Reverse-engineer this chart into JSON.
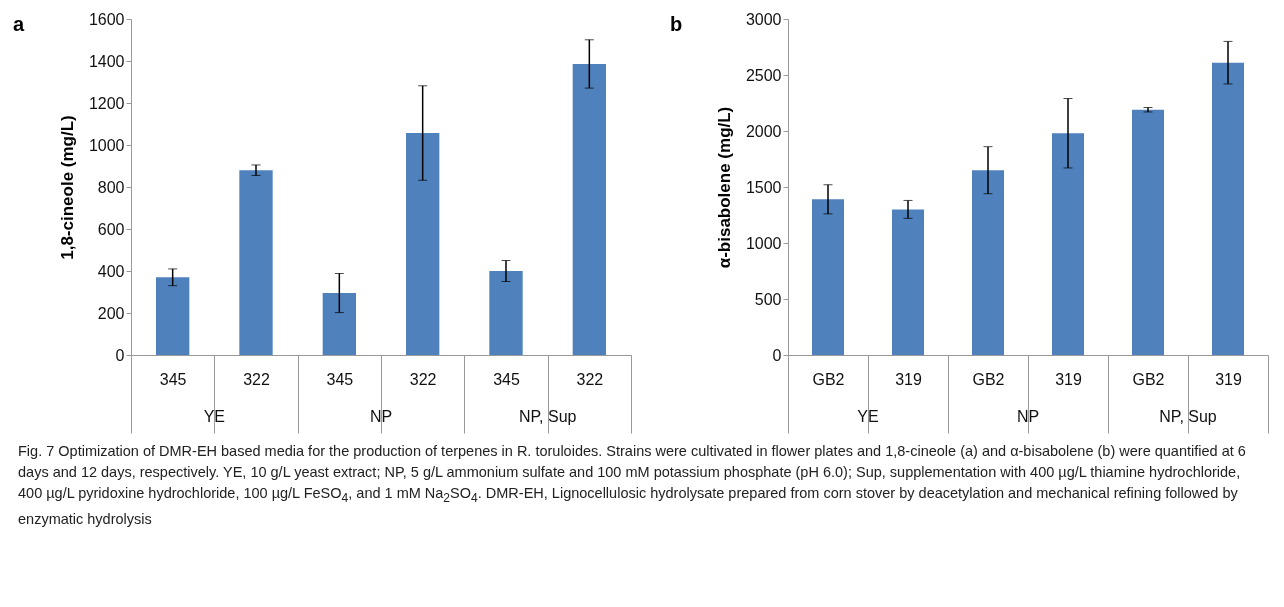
{
  "chart_data": [
    {
      "type": "bar",
      "title": "a",
      "ylabel": "1,8-cineole (mg/L)",
      "categories": [
        "345",
        "322",
        "345",
        "322",
        "345",
        "322"
      ],
      "values": [
        370,
        880,
        295,
        1057,
        400,
        1386
      ],
      "errors": [
        40,
        25,
        93,
        225,
        50,
        115
      ],
      "color": "#4f81bd",
      "ylim": [
        0,
        1600
      ],
      "yticks": [
        0,
        200,
        400,
        600,
        800,
        1000,
        1200,
        1400,
        1600
      ],
      "annotations": [
        "YE",
        "NP",
        "NP, Sup"
      ]
    },
    {
      "type": "bar",
      "title": "b",
      "ylabel": "α-bisabolene (mg/L)",
      "categories": [
        "GB2",
        "319",
        "GB2",
        "319",
        "GB2",
        "319"
      ],
      "values": [
        1390,
        1300,
        1650,
        1980,
        2190,
        2610
      ],
      "errors": [
        130,
        80,
        210,
        310,
        20,
        190
      ],
      "color": "#4f81bd",
      "ylim": [
        0,
        3000
      ],
      "yticks": [
        0,
        500,
        1000,
        1500,
        2000,
        2500,
        3000
      ],
      "annotations": [
        "YE",
        "NP",
        "NP, Sup"
      ]
    },
    {
      "type": "other",
      "annotations": [
        "Fig. 7  Optimization of DMR-EH based media for the production of terpenes in R. toruloides. Strains were cultivated in flower plates and 1,8-cineole (a) and α-bisabolene (b) were quantified at 6 days and 12 days, respectively. YE, 10 g/L yeast extract; NP, 5 g/L ammonium sulfate and 100 mM potassium phosphate (pH 6.0); Sup, supplementation with 400 µg/L thiamine hydrochloride, 400 µg/L pyridoxine hydrochloride, 100 µg/L FeSO$_{4}$, and 1 mM Na$_{2}$SO$_{4}$. DMR-EH, Lignocellulosic hydrolysate prepared from corn stover by deacetylation and mechanical refining followed by enzymatic hydrolysis"
      ]
    }
  ]
}
